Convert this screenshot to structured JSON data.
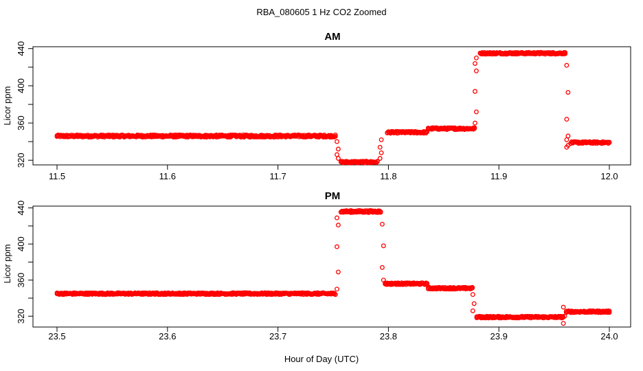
{
  "figure": {
    "title": "RBA_080605  1 Hz CO2 Zoomed",
    "xlabel": "Hour of Day (UTC)"
  },
  "chart_data": [
    {
      "type": "scatter",
      "title": "AM",
      "xlabel": "",
      "ylabel": "Licor ppm",
      "xlim": [
        11.5,
        12.0
      ],
      "ylim": [
        315,
        442
      ],
      "xticks": [
        "11.5",
        "11.6",
        "11.7",
        "11.8",
        "11.9",
        "12.0"
      ],
      "yticks": [
        "320",
        "360",
        "400",
        "440"
      ],
      "marker_color": "#ff0000",
      "segments": [
        {
          "x0": 11.5,
          "x1": 11.752,
          "y": 346,
          "noise": 1.2
        },
        {
          "x0": 11.757,
          "x1": 11.79,
          "y": 318,
          "noise": 1.0
        },
        {
          "x0": 11.799,
          "x1": 11.835,
          "y": 350,
          "noise": 1.0
        },
        {
          "x0": 11.836,
          "x1": 11.878,
          "y": 354,
          "noise": 1.0
        },
        {
          "x0": 11.883,
          "x1": 11.96,
          "y": 435,
          "noise": 1.0
        },
        {
          "x0": 11.965,
          "x1": 12.0,
          "y": 339,
          "noise": 1.0
        }
      ],
      "transitions": [
        {
          "x": 11.754,
          "y": [
            340,
            332,
            326,
            322
          ]
        },
        {
          "x": 11.793,
          "y": [
            322,
            328,
            334,
            342
          ]
        },
        {
          "x": 11.879,
          "y": [
            360,
            372,
            394,
            416,
            424,
            430
          ]
        },
        {
          "x": 11.962,
          "y": [
            422,
            393,
            364,
            346,
            342,
            336,
            334
          ]
        }
      ]
    },
    {
      "type": "scatter",
      "title": "PM",
      "xlabel": "",
      "ylabel": "Licor ppm",
      "xlim": [
        23.5,
        24.0
      ],
      "ylim": [
        308,
        442
      ],
      "xticks": [
        "23.5",
        "23.6",
        "23.7",
        "23.8",
        "23.9",
        "24.0"
      ],
      "yticks": [
        "320",
        "360",
        "400",
        "440"
      ],
      "marker_color": "#ff0000",
      "segments": [
        {
          "x0": 23.5,
          "x1": 23.752,
          "y": 345,
          "noise": 1.0
        },
        {
          "x0": 23.757,
          "x1": 23.793,
          "y": 436,
          "noise": 1.2
        },
        {
          "x0": 23.797,
          "x1": 23.835,
          "y": 356,
          "noise": 1.0
        },
        {
          "x0": 23.836,
          "x1": 23.876,
          "y": 351,
          "noise": 1.0
        },
        {
          "x0": 23.88,
          "x1": 23.958,
          "y": 319,
          "noise": 1.0
        },
        {
          "x0": 23.961,
          "x1": 24.0,
          "y": 325,
          "noise": 1.0
        }
      ],
      "transitions": [
        {
          "x": 23.754,
          "y": [
            350,
            369,
            397,
            421,
            429
          ]
        },
        {
          "x": 23.795,
          "y": [
            422,
            398,
            374,
            360
          ]
        },
        {
          "x": 23.877,
          "y": [
            344,
            334,
            326
          ]
        },
        {
          "x": 23.959,
          "y": [
            312,
            320,
            330
          ]
        }
      ]
    }
  ]
}
